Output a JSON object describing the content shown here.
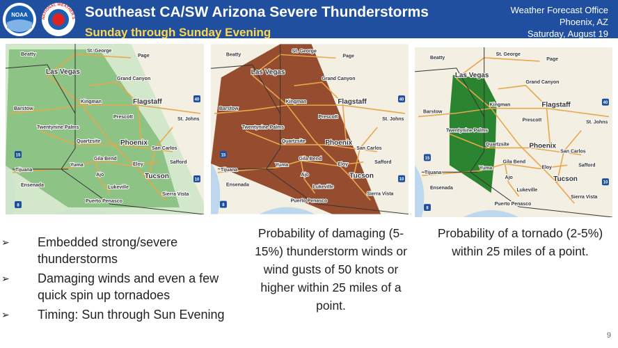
{
  "header": {
    "title": "Southeast CA/SW Arizona Severe Thunderstorms",
    "subtitle": "Sunday through Sunday Evening",
    "office": "Weather Forecast Office",
    "location": "Phoenix, AZ",
    "date": "Saturday, August 19"
  },
  "logos": [
    "NOAA",
    "NATIONAL WEATHER SERVICE"
  ],
  "map_labels": [
    "Beatty",
    "St. George",
    "Page",
    "Las Vegas",
    "Grand Canyon",
    "Kingman",
    "Flagstaff",
    "Barstow",
    "Prescott",
    "St. Johns",
    "Twentynine Palms",
    "Quartzsite",
    "Phoenix",
    "San Carlos",
    "Gila Bend",
    "Eloy",
    "Safford",
    "Yuma",
    "Ajo",
    "Tucson",
    "Tijuana",
    "Ensenada",
    "Lukeville",
    "Sierra Vista",
    "Puerto Penasco"
  ],
  "highway_shields": [
    "15",
    "40",
    "10",
    "8"
  ],
  "bullets": [
    "Embedded strong/severe thunderstorms",
    "Damaging winds and even a few quick spin up tornadoes",
    "Timing: Sun through Sun Evening"
  ],
  "captions": [
    "Probability of damaging (5-15%) thunderstorm winds or wind gusts of 50 knots or higher within 25 miles of a point.",
    "Probability of a tornado (2-5%) within 25 miles of a point."
  ],
  "page_number": "9"
}
